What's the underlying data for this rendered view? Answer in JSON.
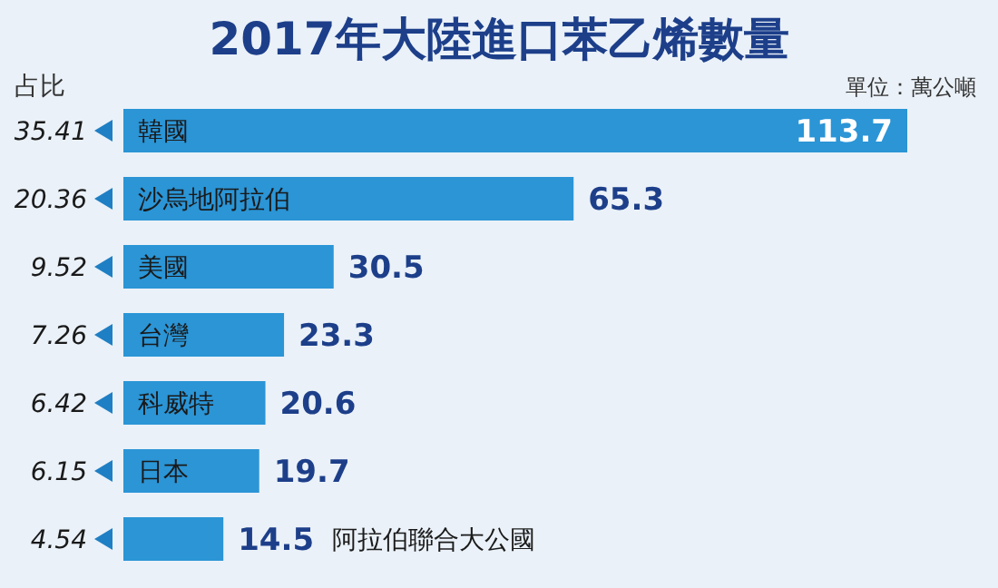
{
  "chart_data": {
    "type": "bar",
    "orientation": "horizontal",
    "data_labels": true,
    "title": "2017年大陸進口苯乙烯數量",
    "categories": [
      "韓國",
      "沙烏地阿拉伯",
      "美國",
      "台灣",
      "科威特",
      "日本",
      "阿拉伯聯合大公國"
    ],
    "values": [
      113.7,
      65.3,
      30.5,
      23.3,
      20.6,
      19.7,
      14.5
    ],
    "color": "#2b95d6",
    "annotations": [
      "單位：萬公噸",
      "占比",
      "35.41",
      "20.36",
      "9.52",
      "7.26",
      "6.42",
      "6.15",
      "4.54"
    ]
  }
}
